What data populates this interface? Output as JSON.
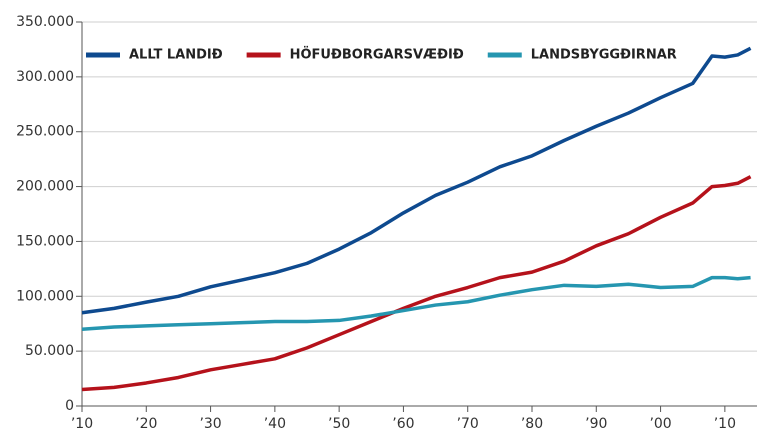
{
  "chart_data": {
    "type": "line",
    "x": [
      1910,
      1915,
      1920,
      1925,
      1930,
      1935,
      1940,
      1945,
      1950,
      1955,
      1960,
      1965,
      1970,
      1975,
      1980,
      1985,
      1990,
      1995,
      2000,
      2005,
      2008,
      2010,
      2012,
      2014
    ],
    "series": [
      {
        "name": "ALLT LANDIÐ",
        "color": "#0e4a8f",
        "values": [
          85000,
          89000,
          94700,
          100000,
          108600,
          115000,
          121500,
          130000,
          143000,
          158000,
          176000,
          192000,
          204000,
          218000,
          228000,
          242000,
          255000,
          267000,
          281000,
          294000,
          319000,
          318000,
          320000,
          326000
        ]
      },
      {
        "name": "HÖFUÐBORGARSVÆÐIÐ",
        "color": "#b5121b",
        "values": [
          15000,
          17000,
          21000,
          26000,
          33000,
          38000,
          43000,
          53000,
          65000,
          77000,
          89000,
          100000,
          108000,
          117000,
          122000,
          132000,
          146000,
          157000,
          172000,
          185000,
          200000,
          201000,
          203000,
          209000
        ]
      },
      {
        "name": "LANDSBYGGÐIRNAR",
        "color": "#2596b0",
        "values": [
          70000,
          72000,
          73000,
          74000,
          75000,
          76000,
          77000,
          77000,
          78000,
          82000,
          87000,
          92000,
          95000,
          101000,
          106000,
          110000,
          109000,
          111000,
          108000,
          109000,
          117000,
          117000,
          116000,
          117000
        ]
      }
    ],
    "xlim": [
      1910,
      2015
    ],
    "xticks": [
      {
        "value": 1910,
        "label": "’10"
      },
      {
        "value": 1920,
        "label": "’20"
      },
      {
        "value": 1930,
        "label": "’30"
      },
      {
        "value": 1940,
        "label": "’40"
      },
      {
        "value": 1950,
        "label": "’50"
      },
      {
        "value": 1960,
        "label": "’60"
      },
      {
        "value": 1970,
        "label": "’70"
      },
      {
        "value": 1980,
        "label": "’80"
      },
      {
        "value": 1990,
        "label": "’90"
      },
      {
        "value": 2000,
        "label": "’00"
      },
      {
        "value": 2010,
        "label": "’10"
      }
    ],
    "ylim": [
      0,
      350000
    ],
    "yticks": [
      0,
      {
        "value": 50000,
        "label": "50.000"
      },
      {
        "value": 100000,
        "label": "100.000"
      },
      {
        "value": 150000,
        "label": "150.000"
      },
      {
        "value": 200000,
        "label": "200.000"
      },
      {
        "value": 250000,
        "label": "250.000"
      },
      {
        "value": 300000,
        "label": "300.000"
      },
      {
        "value": 350000,
        "label": "350.000"
      }
    ],
    "grid": true,
    "legend": "top-left"
  }
}
